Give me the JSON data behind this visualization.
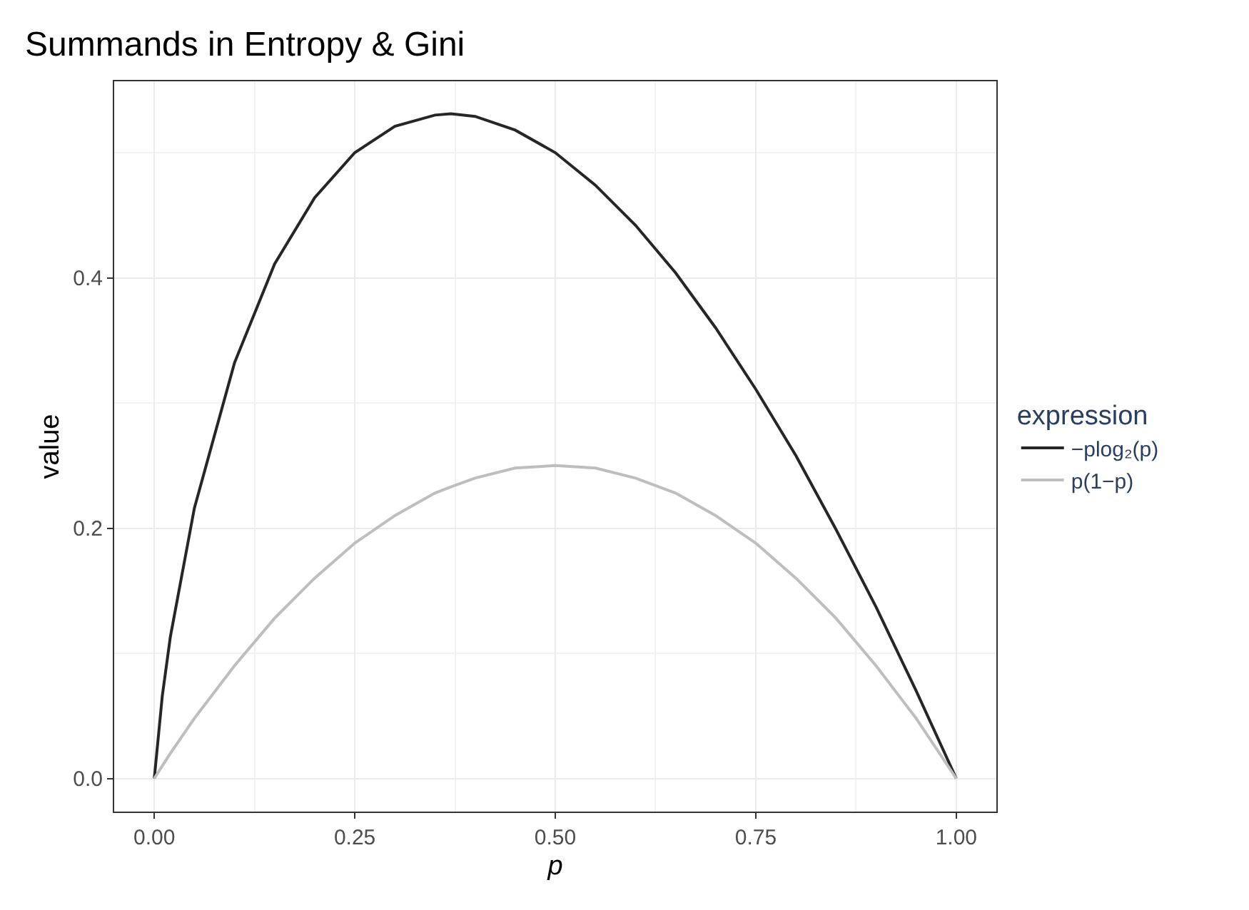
{
  "chart_data": {
    "type": "line",
    "title": "Summands in Entropy & Gini",
    "xlabel": "p",
    "ylabel": "value",
    "legend_title": "expression",
    "x": [
      0,
      0.01,
      0.02,
      0.05,
      0.1,
      0.15,
      0.2,
      0.25,
      0.3,
      0.35,
      0.37,
      0.4,
      0.45,
      0.5,
      0.55,
      0.6,
      0.65,
      0.7,
      0.75,
      0.8,
      0.85,
      0.9,
      0.95,
      1
    ],
    "series": [
      {
        "name": "−plog₂(p)",
        "color": "#262626",
        "values": [
          0,
          0.066,
          0.113,
          0.216,
          0.332,
          0.411,
          0.464,
          0.5,
          0.521,
          0.53,
          0.531,
          0.529,
          0.518,
          0.5,
          0.474,
          0.442,
          0.404,
          0.36,
          0.311,
          0.258,
          0.199,
          0.137,
          0.07,
          0
        ]
      },
      {
        "name": "p(1−p)",
        "color": "#bebebe",
        "values": [
          0,
          0.01,
          0.02,
          0.048,
          0.09,
          0.128,
          0.16,
          0.188,
          0.21,
          0.228,
          0.233,
          0.24,
          0.248,
          0.25,
          0.248,
          0.24,
          0.228,
          0.21,
          0.188,
          0.16,
          0.128,
          0.09,
          0.048,
          0
        ]
      }
    ],
    "xlim": [
      -0.05,
      1.05
    ],
    "ylim": [
      -0.0265,
      0.557
    ],
    "xticks": [
      {
        "value": 0,
        "label": "0.00"
      },
      {
        "value": 0.125,
        "label": null
      },
      {
        "value": 0.25,
        "label": "0.25"
      },
      {
        "value": 0.375,
        "label": null
      },
      {
        "value": 0.5,
        "label": "0.50"
      },
      {
        "value": 0.625,
        "label": null
      },
      {
        "value": 0.75,
        "label": "0.75"
      },
      {
        "value": 0.875,
        "label": null
      },
      {
        "value": 1,
        "label": "1.00"
      }
    ],
    "yticks": [
      {
        "value": 0,
        "label": "0.0"
      },
      {
        "value": 0.1,
        "label": null
      },
      {
        "value": 0.2,
        "label": "0.2"
      },
      {
        "value": 0.3,
        "label": null
      },
      {
        "value": 0.4,
        "label": "0.4"
      },
      {
        "value": 0.5,
        "label": null
      }
    ],
    "grid": true,
    "legend": "right",
    "line_style": "solid",
    "marker": "none"
  }
}
